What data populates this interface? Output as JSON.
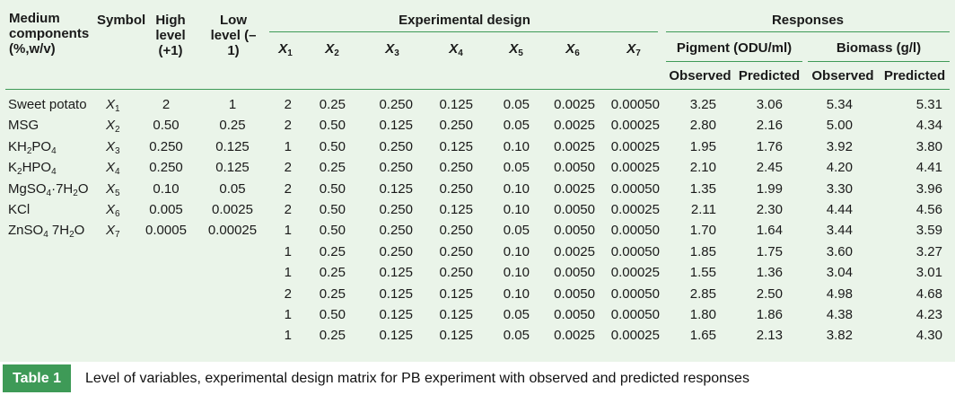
{
  "header": {
    "medium_components": "Medium components (%,w/v)",
    "symbol": "Symbol",
    "high_level": "High level (+1)",
    "low_level": "Low level (–1)",
    "experimental_design": "Experimental design",
    "responses": "Responses",
    "design_cols": [
      "X1",
      "X2",
      "X3",
      "X4",
      "X5",
      "X6",
      "X7"
    ],
    "pigment": "Pigment (ODU/ml)",
    "biomass": "Biomass (g/l)",
    "observed": "Observed",
    "predicted": "Predicted"
  },
  "variables": [
    {
      "name": "Sweet potato",
      "symbol": "X1",
      "high": "2",
      "low": "1"
    },
    {
      "name": "MSG",
      "symbol": "X2",
      "high": "0.50",
      "low": "0.25"
    },
    {
      "name": "KH2PO4",
      "symbol": "X3",
      "high": "0.250",
      "low": "0.125"
    },
    {
      "name": "K2HPO4",
      "symbol": "X4",
      "high": "0.250",
      "low": "0.125"
    },
    {
      "name": "MgSO4·7H2O",
      "symbol": "X5",
      "high": "0.10",
      "low": "0.05"
    },
    {
      "name": "KCl",
      "symbol": "X6",
      "high": "0.005",
      "low": "0.0025"
    },
    {
      "name": "ZnSO4 7H2O",
      "symbol": "X7",
      "high": "0.0005",
      "low": "0.00025"
    }
  ],
  "runs": [
    [
      "2",
      "0.25",
      "0.250",
      "0.125",
      "0.05",
      "0.0025",
      "0.00050",
      "3.25",
      "3.06",
      "5.34",
      "5.31"
    ],
    [
      "2",
      "0.50",
      "0.125",
      "0.250",
      "0.05",
      "0.0025",
      "0.00025",
      "2.80",
      "2.16",
      "5.00",
      "4.34"
    ],
    [
      "1",
      "0.50",
      "0.250",
      "0.125",
      "0.10",
      "0.0025",
      "0.00025",
      "1.95",
      "1.76",
      "3.92",
      "3.80"
    ],
    [
      "2",
      "0.25",
      "0.250",
      "0.250",
      "0.05",
      "0.0050",
      "0.00025",
      "2.10",
      "2.45",
      "4.20",
      "4.41"
    ],
    [
      "2",
      "0.50",
      "0.125",
      "0.250",
      "0.10",
      "0.0025",
      "0.00050",
      "1.35",
      "1.99",
      "3.30",
      "3.96"
    ],
    [
      "2",
      "0.50",
      "0.250",
      "0.125",
      "0.10",
      "0.0050",
      "0.00025",
      "2.11",
      "2.30",
      "4.44",
      "4.56"
    ],
    [
      "1",
      "0.50",
      "0.250",
      "0.250",
      "0.05",
      "0.0050",
      "0.00050",
      "1.70",
      "1.64",
      "3.44",
      "3.59"
    ],
    [
      "1",
      "0.25",
      "0.250",
      "0.250",
      "0.10",
      "0.0025",
      "0.00050",
      "1.85",
      "1.75",
      "3.60",
      "3.27"
    ],
    [
      "1",
      "0.25",
      "0.125",
      "0.250",
      "0.10",
      "0.0050",
      "0.00025",
      "1.55",
      "1.36",
      "3.04",
      "3.01"
    ],
    [
      "2",
      "0.25",
      "0.125",
      "0.125",
      "0.10",
      "0.0050",
      "0.00050",
      "2.85",
      "2.50",
      "4.98",
      "4.68"
    ],
    [
      "1",
      "0.50",
      "0.125",
      "0.125",
      "0.05",
      "0.0050",
      "0.00050",
      "1.80",
      "1.86",
      "4.38",
      "4.23"
    ],
    [
      "1",
      "0.25",
      "0.125",
      "0.125",
      "0.05",
      "0.0025",
      "0.00025",
      "1.65",
      "2.13",
      "3.82",
      "4.30"
    ]
  ],
  "caption": {
    "label": "Table 1",
    "text": "Level of variables, experimental design matrix for PB experiment with observed and predicted responses"
  },
  "colors": {
    "table_background": "#eaf4e9",
    "rule_green": "#3f9a57",
    "label_background": "#3e9a57"
  }
}
